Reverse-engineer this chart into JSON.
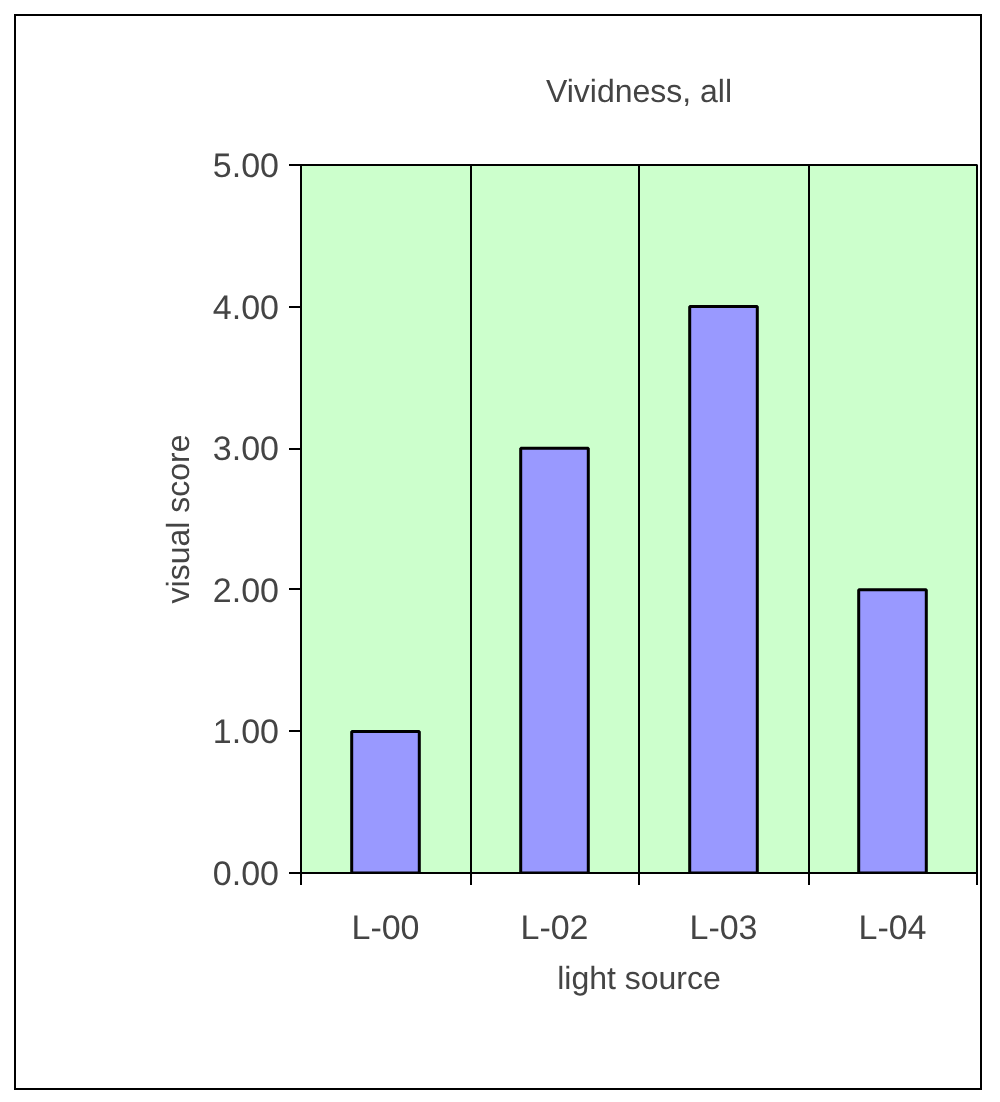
{
  "chart_data": {
    "type": "bar",
    "title": "Vividness, all",
    "xlabel": "light source",
    "ylabel": "visual score",
    "categories": [
      "L-00",
      "L-02",
      "L-03",
      "L-04"
    ],
    "values": [
      1,
      3,
      4,
      2
    ],
    "color": "#9999ff",
    "ylim": [
      0,
      5
    ],
    "yticks": [
      {
        "value": 0,
        "label": "0.00"
      },
      {
        "value": 1,
        "label": "1.00"
      },
      {
        "value": 2,
        "label": "2.00"
      },
      {
        "value": 3,
        "label": "3.00"
      },
      {
        "value": 4,
        "label": "4.00"
      },
      {
        "value": 5,
        "label": "5.00"
      }
    ],
    "grid": "x"
  }
}
